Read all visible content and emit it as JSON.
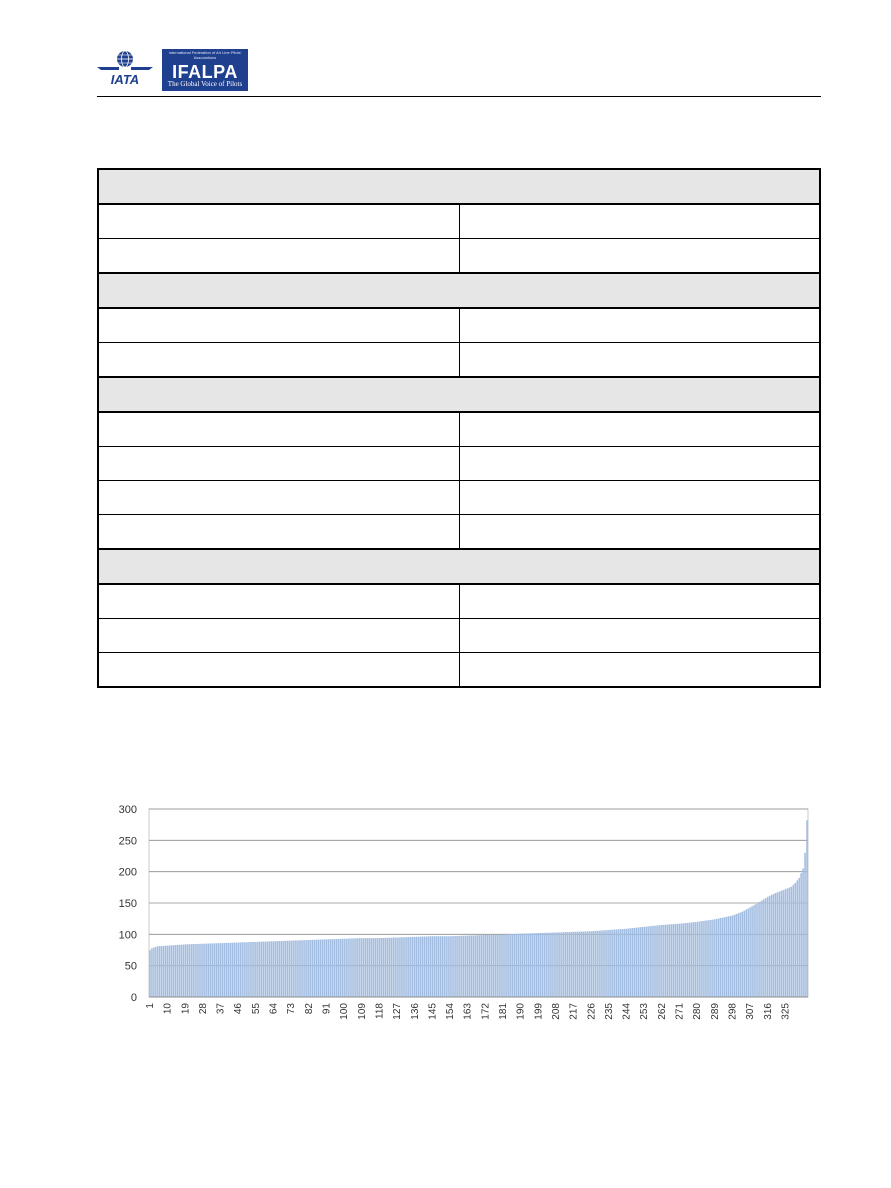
{
  "header": {
    "iata_logo": {
      "text": "IATA",
      "icon": "globe-wings-icon"
    },
    "ifalpa_logo": {
      "text": "IFALPA",
      "tagline": "The Global Voice of Pilots",
      "small": "International Federation of Air Line Pilots' Associations"
    }
  },
  "table": {
    "rows": [
      {
        "type": "section"
      },
      {
        "type": "row"
      },
      {
        "type": "row"
      },
      {
        "type": "section"
      },
      {
        "type": "row"
      },
      {
        "type": "row"
      },
      {
        "type": "section"
      },
      {
        "type": "row"
      },
      {
        "type": "row"
      },
      {
        "type": "row"
      },
      {
        "type": "row"
      },
      {
        "type": "section"
      },
      {
        "type": "row"
      },
      {
        "type": "row"
      },
      {
        "type": "row"
      }
    ]
  },
  "chart_data": {
    "type": "bar",
    "title": "",
    "xlabel": "",
    "ylabel": "",
    "ylim": [
      0,
      300
    ],
    "yticks": [
      0,
      50,
      100,
      150,
      200,
      250,
      300
    ],
    "xticks": [
      1,
      10,
      19,
      28,
      37,
      46,
      55,
      64,
      73,
      82,
      91,
      100,
      109,
      118,
      127,
      136,
      145,
      154,
      163,
      172,
      181,
      190,
      199,
      208,
      217,
      226,
      235,
      244,
      253,
      262,
      271,
      280,
      289,
      298,
      307,
      316,
      325
    ],
    "n_bars": 336,
    "curve_points": [
      [
        1,
        75
      ],
      [
        2,
        78
      ],
      [
        5,
        81
      ],
      [
        10,
        82
      ],
      [
        19,
        84
      ],
      [
        28,
        85
      ],
      [
        37,
        86
      ],
      [
        46,
        87
      ],
      [
        55,
        88
      ],
      [
        64,
        89
      ],
      [
        73,
        90
      ],
      [
        82,
        91
      ],
      [
        91,
        92
      ],
      [
        100,
        93
      ],
      [
        109,
        94
      ],
      [
        118,
        94
      ],
      [
        127,
        95
      ],
      [
        136,
        96
      ],
      [
        145,
        97
      ],
      [
        154,
        97
      ],
      [
        163,
        98
      ],
      [
        172,
        99
      ],
      [
        181,
        100
      ],
      [
        190,
        101
      ],
      [
        199,
        102
      ],
      [
        208,
        103
      ],
      [
        217,
        104
      ],
      [
        226,
        105
      ],
      [
        235,
        107
      ],
      [
        244,
        109
      ],
      [
        253,
        112
      ],
      [
        262,
        115
      ],
      [
        271,
        117
      ],
      [
        280,
        120
      ],
      [
        289,
        124
      ],
      [
        298,
        130
      ],
      [
        303,
        136
      ],
      [
        307,
        143
      ],
      [
        312,
        152
      ],
      [
        316,
        160
      ],
      [
        320,
        166
      ],
      [
        325,
        172
      ],
      [
        328,
        176
      ],
      [
        330,
        182
      ],
      [
        332,
        190
      ],
      [
        334,
        205
      ],
      [
        335,
        230
      ],
      [
        336,
        282
      ]
    ],
    "grid": true,
    "bar_color": "#a3bde0"
  }
}
